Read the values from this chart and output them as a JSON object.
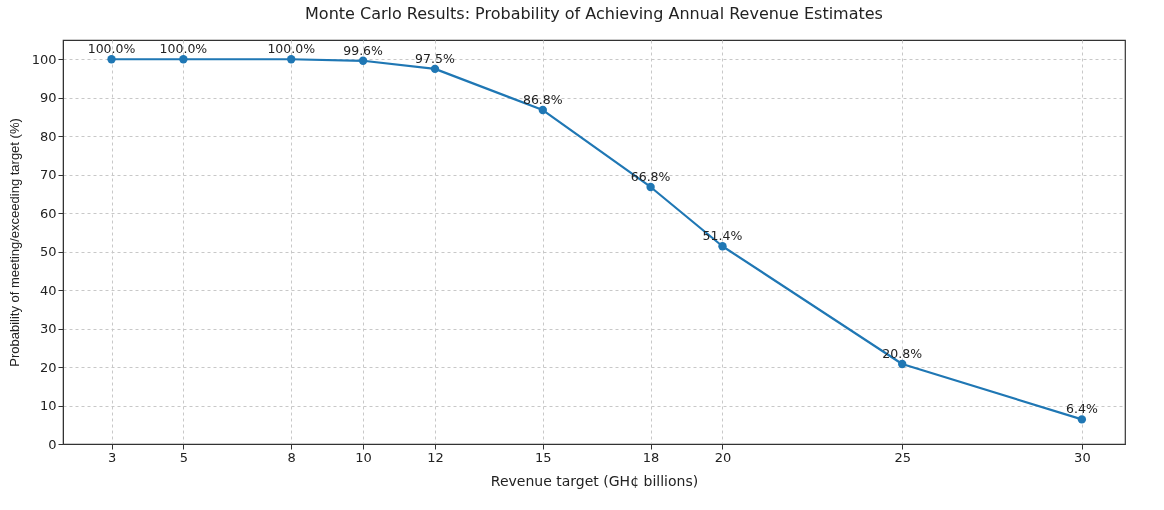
{
  "chart_data": {
    "type": "line",
    "title": "Monte Carlo Results: Probability of Achieving Annual Revenue Estimates",
    "xlabel": "Revenue target (GH¢ billions)",
    "ylabel": "Probability of meeting/exceeding target (%)",
    "x": [
      3,
      5,
      8,
      10,
      12,
      15,
      18,
      20,
      25,
      30
    ],
    "series": [
      {
        "color": "#1f77b4",
        "values": [
          100,
          100,
          100,
          99.6,
          97.5,
          86.8,
          66.8,
          51.4,
          20.8,
          6.4
        ],
        "value_labels": [
          "100.0%",
          "100.0%",
          "100.0%",
          "99.6%",
          "97.5%",
          "86.8%",
          "66.8%",
          "51.4%",
          "20.8%",
          "6.4%"
        ]
      }
    ],
    "xlim": [
      1.65,
      31.2
    ],
    "xticks": [
      3,
      5,
      8,
      10,
      12,
      15,
      18,
      20,
      25,
      30
    ],
    "ylim": [
      0,
      105
    ],
    "yticks": [
      0,
      10,
      20,
      30,
      40,
      50,
      60,
      70,
      80,
      90,
      100
    ],
    "grid": true,
    "marker": "circle",
    "line_style": "solid"
  }
}
